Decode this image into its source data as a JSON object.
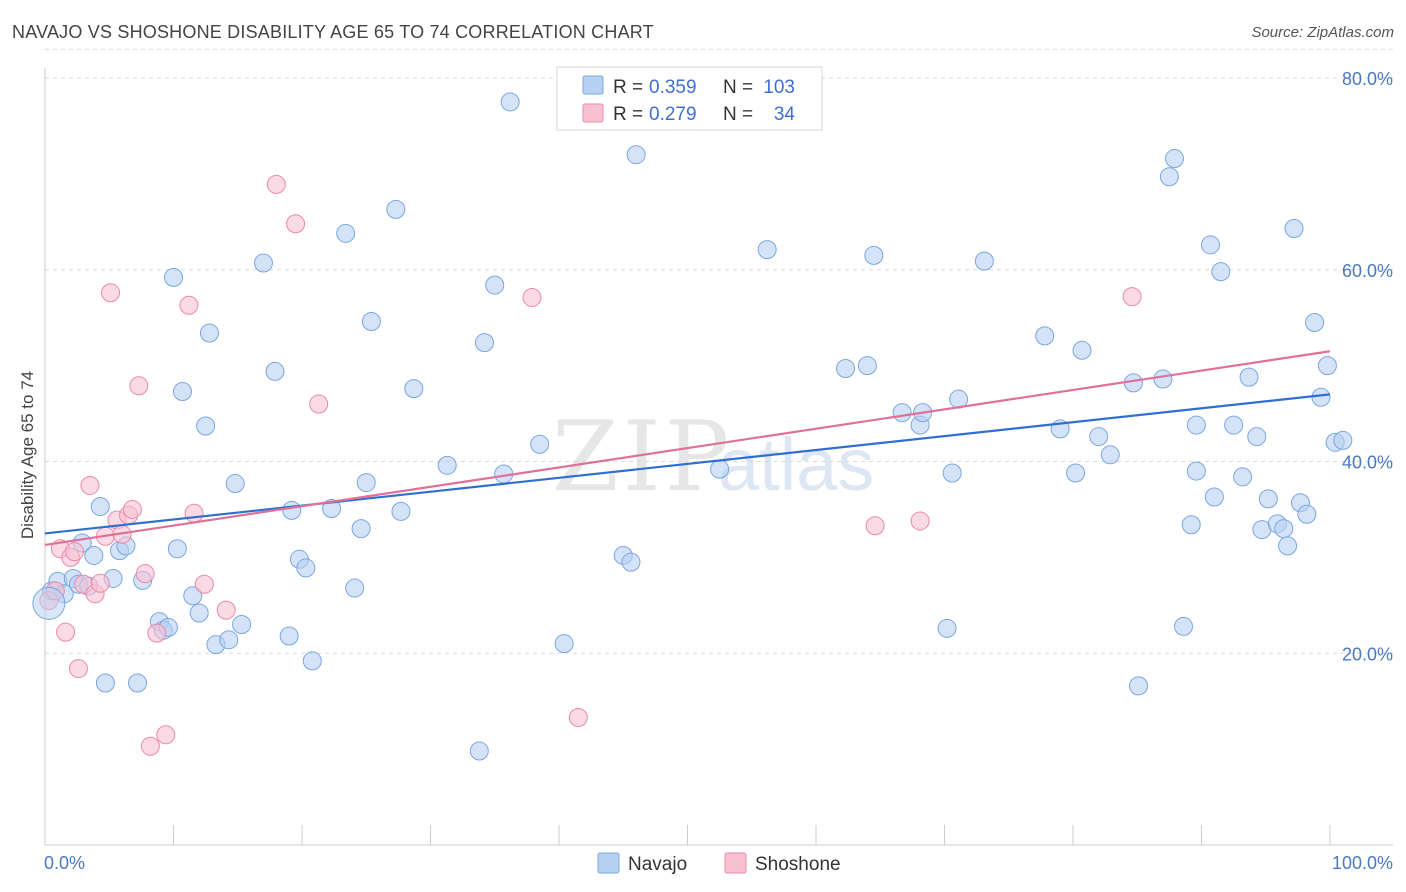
{
  "header": {
    "title": "NAVAJO VS SHOSHONE DISABILITY AGE 65 TO 74 CORRELATION CHART",
    "source": "Source: ZipAtlas.com"
  },
  "watermark": {
    "part1": "ZIP",
    "part2": "atlas"
  },
  "colors": {
    "navajo_fill": "#b8d1f3",
    "navajo_stroke": "#7aa6df",
    "navajo_line": "#2f6fd0",
    "shoshone_fill": "#f7c1d2",
    "shoshone_stroke": "#e98aa8",
    "shoshone_line": "#e0709a",
    "grid": "#d9d9d9",
    "tick_label": "#4a78c2"
  },
  "legend": {
    "rows": [
      {
        "r_label": "R =",
        "r_value": "0.359",
        "n_label": "N =",
        "n_value": "103"
      },
      {
        "r_label": "R =",
        "r_value": "0.279",
        "n_label": "N =",
        "n_value": "34"
      }
    ]
  },
  "chart_data": {
    "type": "scatter",
    "title": "NAVAJO VS SHOSHONE DISABILITY AGE 65 TO 74 CORRELATION CHART",
    "xlabel": "",
    "ylabel": "Disability Age 65 to 74",
    "xlim": [
      0,
      100
    ],
    "ylim": [
      0,
      83
    ],
    "x_tick_labels": [
      "0.0%",
      "100.0%"
    ],
    "y_ticks": [
      20,
      40,
      60,
      80
    ],
    "y_tick_labels": [
      "20.0%",
      "40.0%",
      "60.0%",
      "80.0%"
    ],
    "grid": true,
    "legend_position": "top-center and bottom",
    "series": [
      {
        "name": "Navajo",
        "r": 0.359,
        "n": 103,
        "trend": {
          "x0": 0,
          "y0": 32.5,
          "x1": 100,
          "y1": 47.0
        },
        "points": [
          [
            0.5,
            26.5
          ],
          [
            1.0,
            27.5
          ],
          [
            1.5,
            26.2
          ],
          [
            2.2,
            27.8
          ],
          [
            2.6,
            27.2
          ],
          [
            2.9,
            31.5
          ],
          [
            3.4,
            27.0
          ],
          [
            3.8,
            30.2
          ],
          [
            4.3,
            35.3
          ],
          [
            4.7,
            16.9
          ],
          [
            5.3,
            27.8
          ],
          [
            5.8,
            30.7
          ],
          [
            6.3,
            31.2
          ],
          [
            7.2,
            16.9
          ],
          [
            7.6,
            27.6
          ],
          [
            8.9,
            23.3
          ],
          [
            9.2,
            22.4
          ],
          [
            9.6,
            22.7
          ],
          [
            10.0,
            59.2
          ],
          [
            10.3,
            30.9
          ],
          [
            10.7,
            47.3
          ],
          [
            11.5,
            26.0
          ],
          [
            12.0,
            24.2
          ],
          [
            12.5,
            43.7
          ],
          [
            12.8,
            53.4
          ],
          [
            13.3,
            20.9
          ],
          [
            14.3,
            21.4
          ],
          [
            14.8,
            37.7
          ],
          [
            15.3,
            23.0
          ],
          [
            17.0,
            60.7
          ],
          [
            17.9,
            49.4
          ],
          [
            19.0,
            21.8
          ],
          [
            19.2,
            34.9
          ],
          [
            19.8,
            29.8
          ],
          [
            20.3,
            28.9
          ],
          [
            20.8,
            19.2
          ],
          [
            22.3,
            35.1
          ],
          [
            23.4,
            63.8
          ],
          [
            24.1,
            26.8
          ],
          [
            24.6,
            33.0
          ],
          [
            25.0,
            37.8
          ],
          [
            25.4,
            54.6
          ],
          [
            27.3,
            66.3
          ],
          [
            27.7,
            34.8
          ],
          [
            28.7,
            47.6
          ],
          [
            31.3,
            39.6
          ],
          [
            33.8,
            9.8
          ],
          [
            34.2,
            52.4
          ],
          [
            35.0,
            58.4
          ],
          [
            35.7,
            38.7
          ],
          [
            36.2,
            77.5
          ],
          [
            38.5,
            41.8
          ],
          [
            40.4,
            21.0
          ],
          [
            45.0,
            30.2
          ],
          [
            45.6,
            29.5
          ],
          [
            46.0,
            72.0
          ],
          [
            52.5,
            39.2
          ],
          [
            56.2,
            62.1
          ],
          [
            62.3,
            49.7
          ],
          [
            64.0,
            50.0
          ],
          [
            64.5,
            61.5
          ],
          [
            66.7,
            45.1
          ],
          [
            68.1,
            43.8
          ],
          [
            68.3,
            45.1
          ],
          [
            70.2,
            22.6
          ],
          [
            70.6,
            38.8
          ],
          [
            71.1,
            46.5
          ],
          [
            73.1,
            60.9
          ],
          [
            77.8,
            53.1
          ],
          [
            79.0,
            43.4
          ],
          [
            80.2,
            38.8
          ],
          [
            80.7,
            51.6
          ],
          [
            82.0,
            42.6
          ],
          [
            82.9,
            40.7
          ],
          [
            84.7,
            48.2
          ],
          [
            85.1,
            16.6
          ],
          [
            87.0,
            48.6
          ],
          [
            87.5,
            69.7
          ],
          [
            87.9,
            71.6
          ],
          [
            88.6,
            22.8
          ],
          [
            89.2,
            33.4
          ],
          [
            89.6,
            43.8
          ],
          [
            89.6,
            39.0
          ],
          [
            90.7,
            62.6
          ],
          [
            91.0,
            36.3
          ],
          [
            91.5,
            59.8
          ],
          [
            92.5,
            43.8
          ],
          [
            93.2,
            38.4
          ],
          [
            93.7,
            48.8
          ],
          [
            94.3,
            42.6
          ],
          [
            94.7,
            32.9
          ],
          [
            95.2,
            36.1
          ],
          [
            95.9,
            33.5
          ],
          [
            96.4,
            33.0
          ],
          [
            96.7,
            31.2
          ],
          [
            97.2,
            64.3
          ],
          [
            97.7,
            35.7
          ],
          [
            98.2,
            34.5
          ],
          [
            98.8,
            54.5
          ],
          [
            99.3,
            46.7
          ],
          [
            99.8,
            50.0
          ],
          [
            100.4,
            42.0
          ],
          [
            101.0,
            42.2
          ]
        ]
      },
      {
        "name": "Shoshone",
        "r": 0.279,
        "n": 34,
        "trend": {
          "x0": 0,
          "y0": 31.3,
          "x1": 100,
          "y1": 51.5
        },
        "points": [
          [
            0.3,
            25.5
          ],
          [
            0.8,
            26.5
          ],
          [
            1.2,
            30.9
          ],
          [
            1.6,
            22.2
          ],
          [
            2.0,
            30.0
          ],
          [
            2.3,
            30.6
          ],
          [
            2.6,
            18.4
          ],
          [
            3.0,
            27.2
          ],
          [
            3.5,
            37.5
          ],
          [
            3.9,
            26.2
          ],
          [
            4.3,
            27.3
          ],
          [
            4.7,
            32.2
          ],
          [
            5.1,
            57.6
          ],
          [
            5.6,
            33.9
          ],
          [
            6.0,
            32.4
          ],
          [
            6.5,
            34.4
          ],
          [
            6.8,
            35.0
          ],
          [
            7.3,
            47.9
          ],
          [
            7.8,
            28.3
          ],
          [
            8.2,
            10.3
          ],
          [
            8.7,
            22.1
          ],
          [
            9.4,
            11.5
          ],
          [
            11.2,
            56.3
          ],
          [
            11.6,
            34.6
          ],
          [
            12.4,
            27.2
          ],
          [
            14.1,
            24.5
          ],
          [
            18.0,
            68.9
          ],
          [
            19.5,
            64.8
          ],
          [
            21.3,
            46.0
          ],
          [
            37.9,
            57.1
          ],
          [
            41.5,
            13.3
          ],
          [
            64.6,
            33.3
          ],
          [
            68.1,
            33.8
          ],
          [
            84.6,
            57.2
          ]
        ]
      }
    ]
  },
  "bottom_legend": {
    "items": [
      "Navajo",
      "Shoshone"
    ]
  }
}
